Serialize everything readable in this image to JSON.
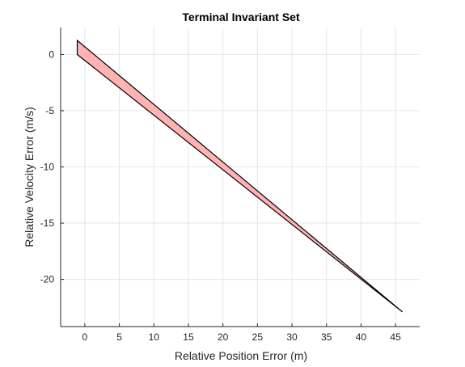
{
  "chart_data": {
    "type": "area",
    "title": "Terminal Invariant Set",
    "xlabel": "Relative Position Error (m)",
    "ylabel": "Relative Velocity Error (m/s)",
    "xlim": [
      -3.5,
      48.5
    ],
    "ylim": [
      -24.2,
      2.4
    ],
    "xticks": [
      0,
      5,
      10,
      15,
      20,
      25,
      30,
      35,
      40,
      45
    ],
    "yticks": [
      0,
      -5,
      -10,
      -15,
      -20
    ],
    "grid": true,
    "legend": "none",
    "polygon": {
      "fill": "#ffb3b3",
      "edge": "#000000",
      "vertices": [
        [
          -1.1,
          1.25
        ],
        [
          46.0,
          -22.9
        ],
        [
          -1.1,
          0.0
        ]
      ]
    }
  }
}
